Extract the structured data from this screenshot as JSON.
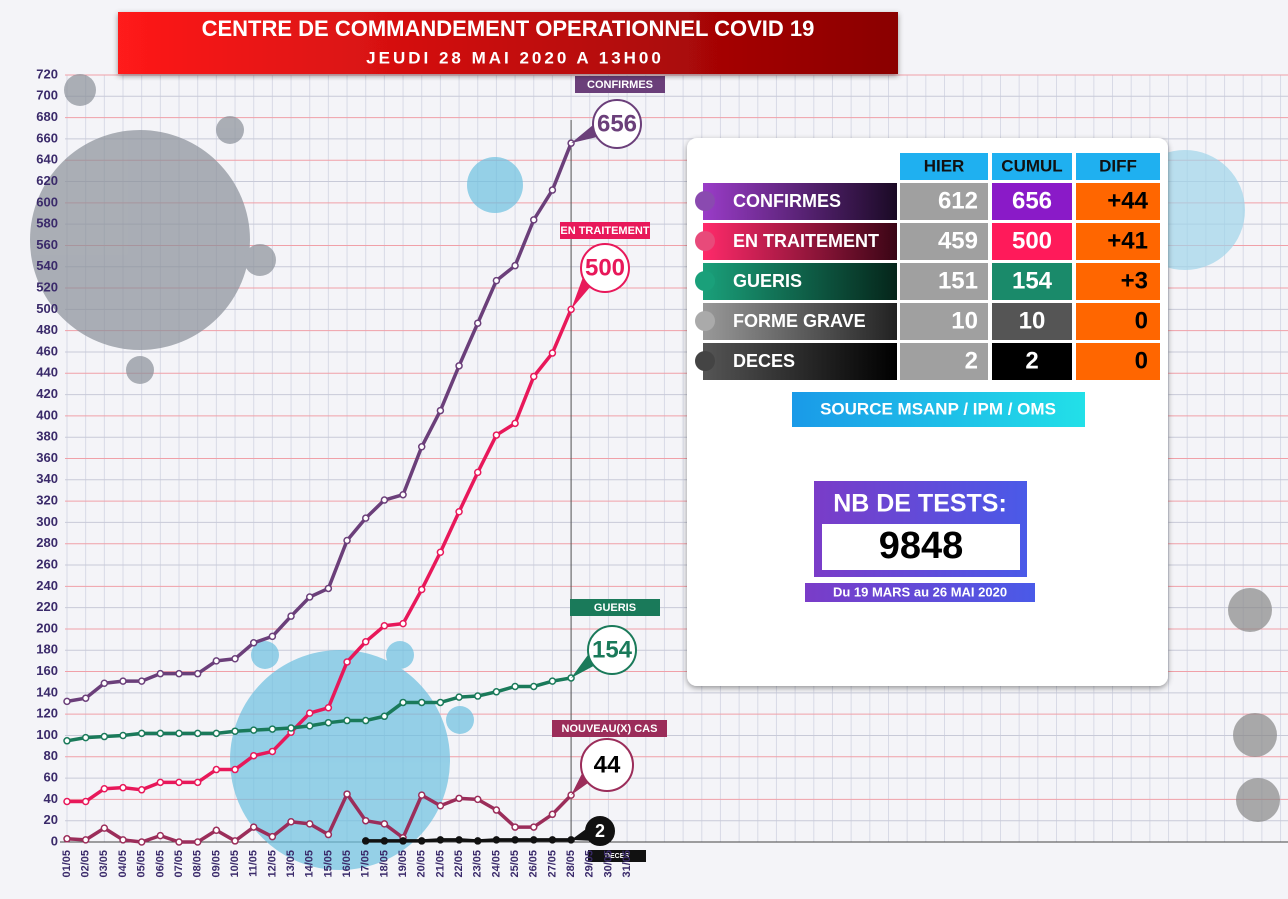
{
  "chart_data": {
    "type": "line",
    "title": "CENTRE DE COMMANDEMENT OPERATIONNEL COVID 19",
    "subtitle": "JEUDI 28 MAI 2020 A 13H00",
    "categories": [
      "01/05",
      "02/05",
      "03/05",
      "04/05",
      "05/05",
      "06/05",
      "07/05",
      "08/05",
      "09/05",
      "10/05",
      "11/05",
      "12/05",
      "13/05",
      "14/05",
      "15/05",
      "16/05",
      "17/05",
      "18/05",
      "19/05",
      "20/05",
      "21/05",
      "22/05",
      "23/05",
      "24/05",
      "25/05",
      "26/05",
      "27/05",
      "28/05",
      "29/05",
      "30/05",
      "31/05"
    ],
    "series": [
      {
        "name": "CONFIRMES",
        "color": "#6b3f7a",
        "values": [
          132,
          135,
          149,
          151,
          151,
          158,
          158,
          158,
          170,
          172,
          187,
          193,
          212,
          230,
          238,
          283,
          304,
          321,
          326,
          371,
          405,
          447,
          487,
          527,
          541,
          584,
          612,
          656,
          null,
          null,
          null
        ]
      },
      {
        "name": "EN TRAITEMENT",
        "color": "#e8185a",
        "values": [
          38,
          38,
          50,
          51,
          49,
          56,
          56,
          56,
          68,
          68,
          81,
          85,
          103,
          121,
          126,
          169,
          188,
          203,
          205,
          237,
          272,
          310,
          347,
          382,
          393,
          437,
          459,
          500,
          null,
          null,
          null
        ]
      },
      {
        "name": "GUERIS",
        "color": "#1a7a5a",
        "values": [
          95,
          98,
          99,
          100,
          102,
          102,
          102,
          102,
          102,
          104,
          105,
          106,
          107,
          109,
          112,
          114,
          114,
          118,
          131,
          131,
          131,
          136,
          137,
          141,
          146,
          146,
          151,
          154,
          null,
          null,
          null
        ]
      },
      {
        "name": "NOUVEAU(X) CAS",
        "color": "#9b2d5a",
        "values": [
          3,
          2,
          13,
          2,
          0,
          6,
          0,
          0,
          11,
          1,
          14,
          5,
          19,
          17,
          7,
          45,
          20,
          17,
          4,
          44,
          34,
          41,
          40,
          30,
          14,
          14,
          26,
          44,
          null,
          null,
          null
        ]
      },
      {
        "name": "DECES",
        "color": "#111111",
        "values": [
          null,
          null,
          null,
          null,
          null,
          null,
          null,
          null,
          null,
          null,
          null,
          null,
          null,
          null,
          null,
          null,
          1,
          1,
          1,
          1,
          2,
          2,
          1,
          2,
          2,
          2,
          2,
          2,
          null,
          null,
          null
        ]
      }
    ],
    "ylim": [
      0,
      720
    ],
    "yticks": [
      0,
      20,
      40,
      60,
      80,
      100,
      120,
      140,
      160,
      180,
      200,
      220,
      240,
      260,
      280,
      300,
      320,
      340,
      360,
      380,
      400,
      420,
      440,
      460,
      480,
      500,
      520,
      540,
      560,
      580,
      600,
      620,
      640,
      660,
      680,
      700,
      720
    ],
    "grid": true
  },
  "table": {
    "headers": [
      "HIER",
      "CUMUL",
      "DIFF"
    ],
    "rows": [
      [
        "CONFIRMES",
        "612",
        "656",
        "+44"
      ],
      [
        "EN TRAITEMENT",
        "459",
        "500",
        "+41"
      ],
      [
        "GUERIS",
        "151",
        "154",
        "+3"
      ],
      [
        "FORME GRAVE",
        "10",
        "10",
        "0"
      ],
      [
        "DECES",
        "2",
        "2",
        "0"
      ]
    ]
  },
  "source": "SOURCE MSANP / IPM / OMS",
  "tests": {
    "label": "NB DE TESTS:",
    "value": "9848",
    "period": "Du 19 MARS au 26 MAI 2020"
  }
}
